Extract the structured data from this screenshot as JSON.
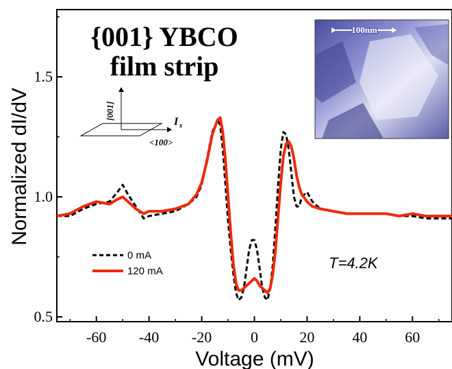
{
  "chart_data": {
    "type": "line",
    "title_line1": "{001} YBCO",
    "title_line2": "film strip",
    "xlabel": "Voltage (mV)",
    "ylabel": "Normalized dI/dV",
    "xlim": [
      -75,
      75
    ],
    "ylim": [
      0.48,
      1.78
    ],
    "xticks": [
      -60,
      -40,
      -20,
      0,
      20,
      40,
      60
    ],
    "yticks": [
      0.5,
      1.0,
      1.5
    ],
    "ytick_labels": [
      "0.5",
      "1.0",
      "1.5"
    ],
    "legend_position": "lower-left",
    "annotation": "T=4.2K",
    "orientation_labels": {
      "c_axis": "[001]",
      "a_axis": "<100>",
      "current": "I",
      "current_sub": "s"
    },
    "inset": {
      "scale_label": "100nm"
    },
    "series": [
      {
        "name": "0 mA",
        "style": "dashed",
        "color": "#000000",
        "x": [
          -75,
          -70,
          -65,
          -60,
          -55,
          -52,
          -50,
          -48,
          -45,
          -42,
          -40,
          -35,
          -30,
          -25,
          -22,
          -20,
          -18,
          -16,
          -14,
          -13,
          -12,
          -11,
          -10,
          -9,
          -8,
          -7,
          -6,
          -5,
          -4,
          -3,
          -2,
          -1,
          0,
          1,
          2,
          3,
          4,
          5,
          6,
          7,
          8,
          9,
          10,
          11,
          12,
          13,
          14,
          15,
          16,
          17,
          18,
          20,
          22,
          25,
          30,
          35,
          40,
          45,
          50,
          55,
          60,
          65,
          70,
          75
        ],
        "y": [
          0.92,
          0.92,
          0.95,
          0.97,
          0.98,
          1.02,
          1.05,
          1.01,
          0.96,
          0.91,
          0.92,
          0.93,
          0.94,
          0.97,
          1.0,
          1.05,
          1.16,
          1.27,
          1.32,
          1.3,
          1.2,
          1.05,
          0.9,
          0.78,
          0.68,
          0.6,
          0.57,
          0.58,
          0.62,
          0.7,
          0.78,
          0.82,
          0.82,
          0.78,
          0.7,
          0.62,
          0.58,
          0.57,
          0.62,
          0.72,
          0.88,
          1.05,
          1.2,
          1.27,
          1.26,
          1.2,
          1.1,
          1.0,
          0.96,
          0.96,
          1.0,
          1.02,
          0.98,
          0.95,
          0.94,
          0.93,
          0.93,
          0.93,
          0.93,
          0.92,
          0.92,
          0.91,
          0.91,
          0.91
        ]
      },
      {
        "name": "120 mA",
        "style": "solid",
        "color": "#ee2a0c",
        "x": [
          -75,
          -70,
          -65,
          -60,
          -55,
          -52,
          -50,
          -48,
          -45,
          -42,
          -40,
          -35,
          -30,
          -25,
          -22,
          -20,
          -18,
          -16,
          -14,
          -13,
          -12,
          -11,
          -10,
          -9,
          -8,
          -7,
          -6,
          -5,
          -4,
          -3,
          -2,
          -1,
          0,
          1,
          2,
          3,
          4,
          5,
          6,
          7,
          8,
          9,
          10,
          11,
          12,
          13,
          14,
          15,
          16,
          17,
          18,
          20,
          22,
          25,
          30,
          35,
          40,
          45,
          50,
          55,
          60,
          65,
          70,
          75
        ],
        "y": [
          0.92,
          0.93,
          0.96,
          0.98,
          0.97,
          0.99,
          1.0,
          0.98,
          0.95,
          0.93,
          0.94,
          0.94,
          0.95,
          0.97,
          1.01,
          1.06,
          1.15,
          1.26,
          1.32,
          1.33,
          1.27,
          1.15,
          1.0,
          0.85,
          0.72,
          0.64,
          0.61,
          0.61,
          0.62,
          0.63,
          0.64,
          0.65,
          0.66,
          0.65,
          0.63,
          0.62,
          0.61,
          0.6,
          0.62,
          0.68,
          0.78,
          0.92,
          1.06,
          1.17,
          1.22,
          1.23,
          1.21,
          1.16,
          1.09,
          1.04,
          1.01,
          0.98,
          0.96,
          0.95,
          0.94,
          0.93,
          0.93,
          0.93,
          0.93,
          0.92,
          0.93,
          0.92,
          0.92,
          0.92
        ]
      }
    ]
  }
}
